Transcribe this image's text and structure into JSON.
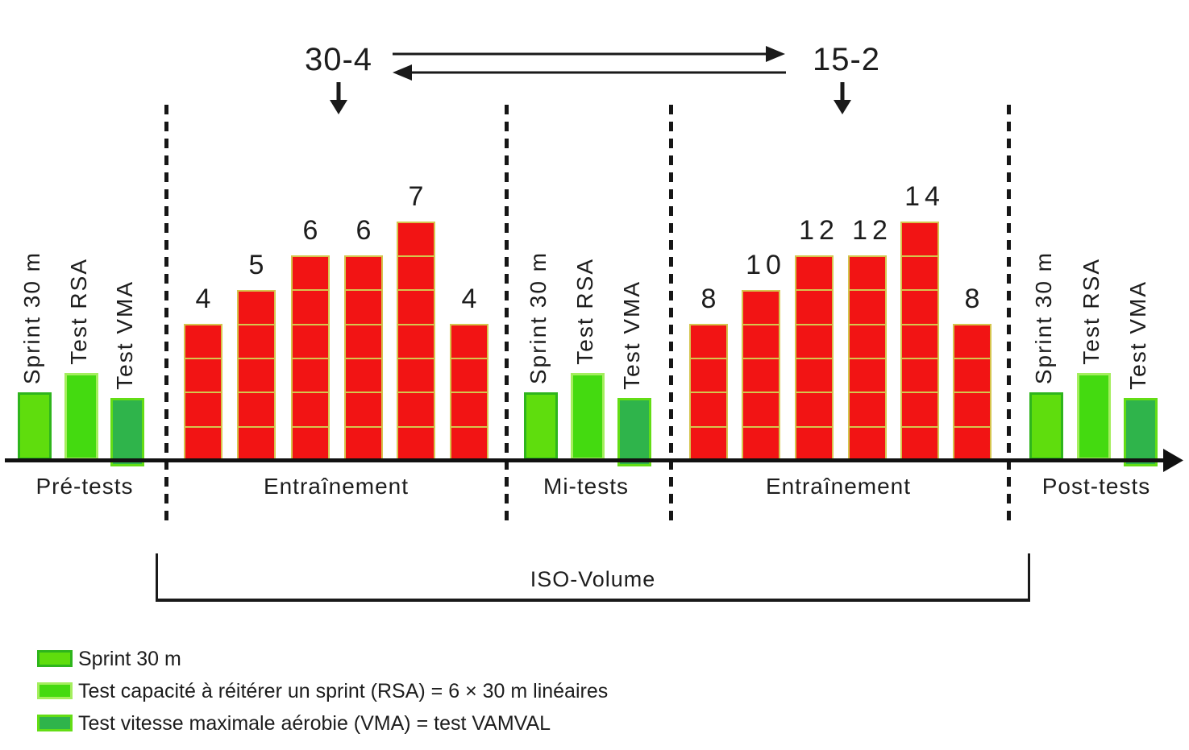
{
  "flow": {
    "left_protocol": "30-4",
    "right_protocol": "15-2"
  },
  "axis_sections": [
    {
      "label": "Pré-tests"
    },
    {
      "label": "Entraînement"
    },
    {
      "label": "Mi-tests"
    },
    {
      "label": "Entraînement"
    },
    {
      "label": "Post-tests"
    }
  ],
  "iso_volume": {
    "label": "ISO-Volume"
  },
  "test_bars": [
    {
      "name": "sprint",
      "label": "Sprint 30 m",
      "fill": "#5fdd0d",
      "stroke": "#2eb51c"
    },
    {
      "name": "rsa",
      "label": "Test RSA",
      "fill": "#44da10",
      "stroke": "#a4ee5e"
    },
    {
      "name": "vma",
      "label": "Test VMA",
      "fill": "#2fb44b",
      "stroke": "#63dd15"
    }
  ],
  "legend": [
    {
      "swatch": "sprint",
      "label": "Sprint 30 m"
    },
    {
      "swatch": "rsa",
      "label": "Test capacité à réitérer un sprint (RSA) = 6 × 30 m linéaires"
    },
    {
      "swatch": "vma",
      "label": "Test vitesse maximale aérobie (VMA) = test VAMVAL"
    }
  ],
  "chart_data": {
    "type": "bar",
    "description": "Weekly sprint-training sessions per block; segments drawn per bar equal sessions (30-4 block) or sessions/2 (15-2 block)",
    "blocks": [
      {
        "section": "Entraînement",
        "protocol": "30-4",
        "values": [
          4,
          5,
          6,
          6,
          7,
          4
        ],
        "segment_unit": 1
      },
      {
        "section": "Entraînement",
        "protocol": "15-2",
        "values": [
          8,
          10,
          12,
          12,
          14,
          8
        ],
        "segment_unit": 2
      }
    ],
    "bar_color": "#f21414",
    "bar_stroke": "#d5c54e"
  }
}
